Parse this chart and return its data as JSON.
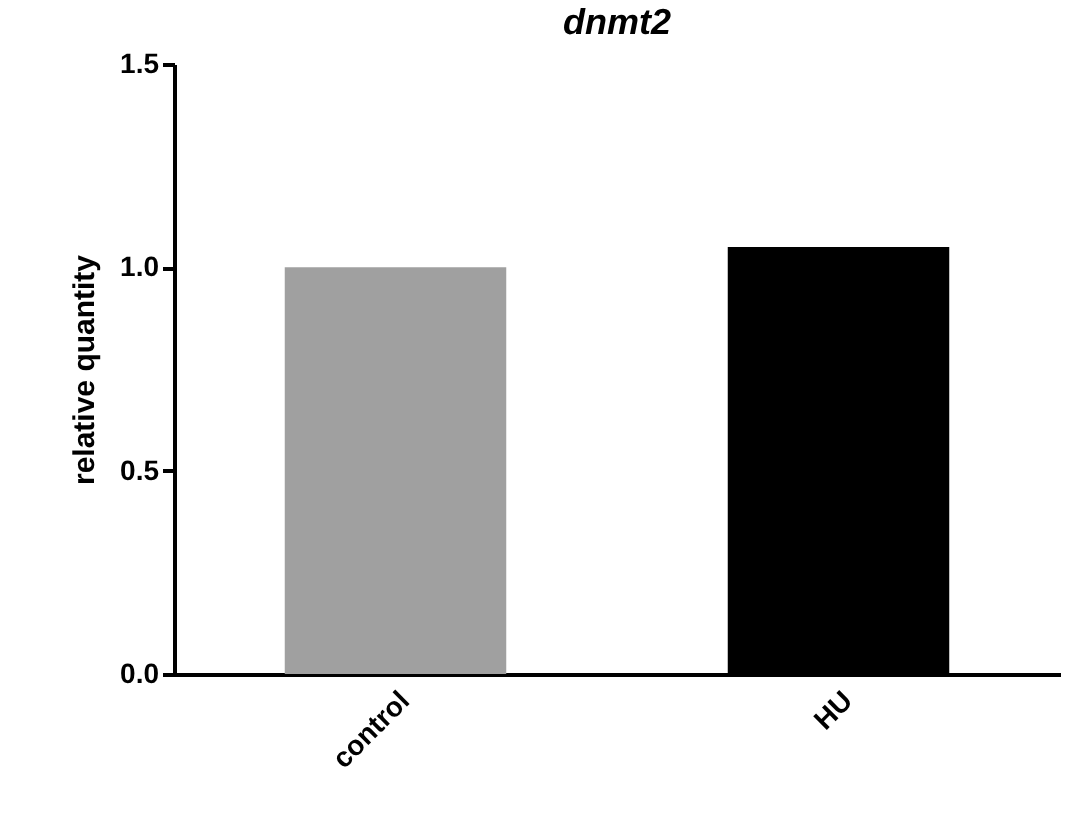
{
  "chart_data": {
    "type": "bar",
    "title": "dnmt2",
    "ylabel": "relative quantity",
    "categories": [
      "control",
      "HU"
    ],
    "values": [
      1.0,
      1.05
    ],
    "colors": [
      "#a0a0a0",
      "#000000"
    ],
    "ylim": [
      0,
      1.5
    ],
    "yticks": [
      {
        "value": 0,
        "label": "0.0"
      },
      {
        "value": 0.5,
        "label": "0.5"
      },
      {
        "value": 1,
        "label": "1.0"
      },
      {
        "value": 1.5,
        "label": "1.5"
      }
    ],
    "grid": false
  }
}
